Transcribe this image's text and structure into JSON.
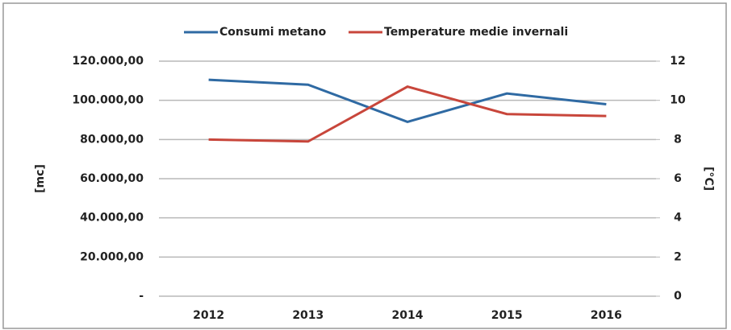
{
  "chart_data": {
    "type": "line",
    "categories": [
      "2012",
      "2013",
      "2014",
      "2015",
      "2016"
    ],
    "series": [
      {
        "name": "Consumi metano",
        "color": "#2f6aa3",
        "values": [
          110500,
          108000,
          89000,
          103500,
          98000
        ]
      },
      {
        "name": "Temperature medie invernali",
        "color": "#c8463b",
        "axis": "y2",
        "values": [
          8.0,
          7.9,
          10.7,
          9.3,
          9.2
        ]
      }
    ],
    "ylabel": "[mc]",
    "y2label": "[°C]",
    "ylim": [
      0,
      120000
    ],
    "yticks": [
      {
        "value": 0,
        "label": "-"
      },
      {
        "value": 20000,
        "label": "20.000,00"
      },
      {
        "value": 40000,
        "label": "40.000,00"
      },
      {
        "value": 60000,
        "label": "60.000,00"
      },
      {
        "value": 80000,
        "label": "80.000,00"
      },
      {
        "value": 100000,
        "label": "100.000,00"
      },
      {
        "value": 120000,
        "label": "120.000,00"
      }
    ],
    "y2lim": [
      0,
      12
    ],
    "y2ticks": [
      0,
      2,
      4,
      6,
      8,
      10,
      12
    ],
    "grid": true,
    "legend": "top"
  }
}
